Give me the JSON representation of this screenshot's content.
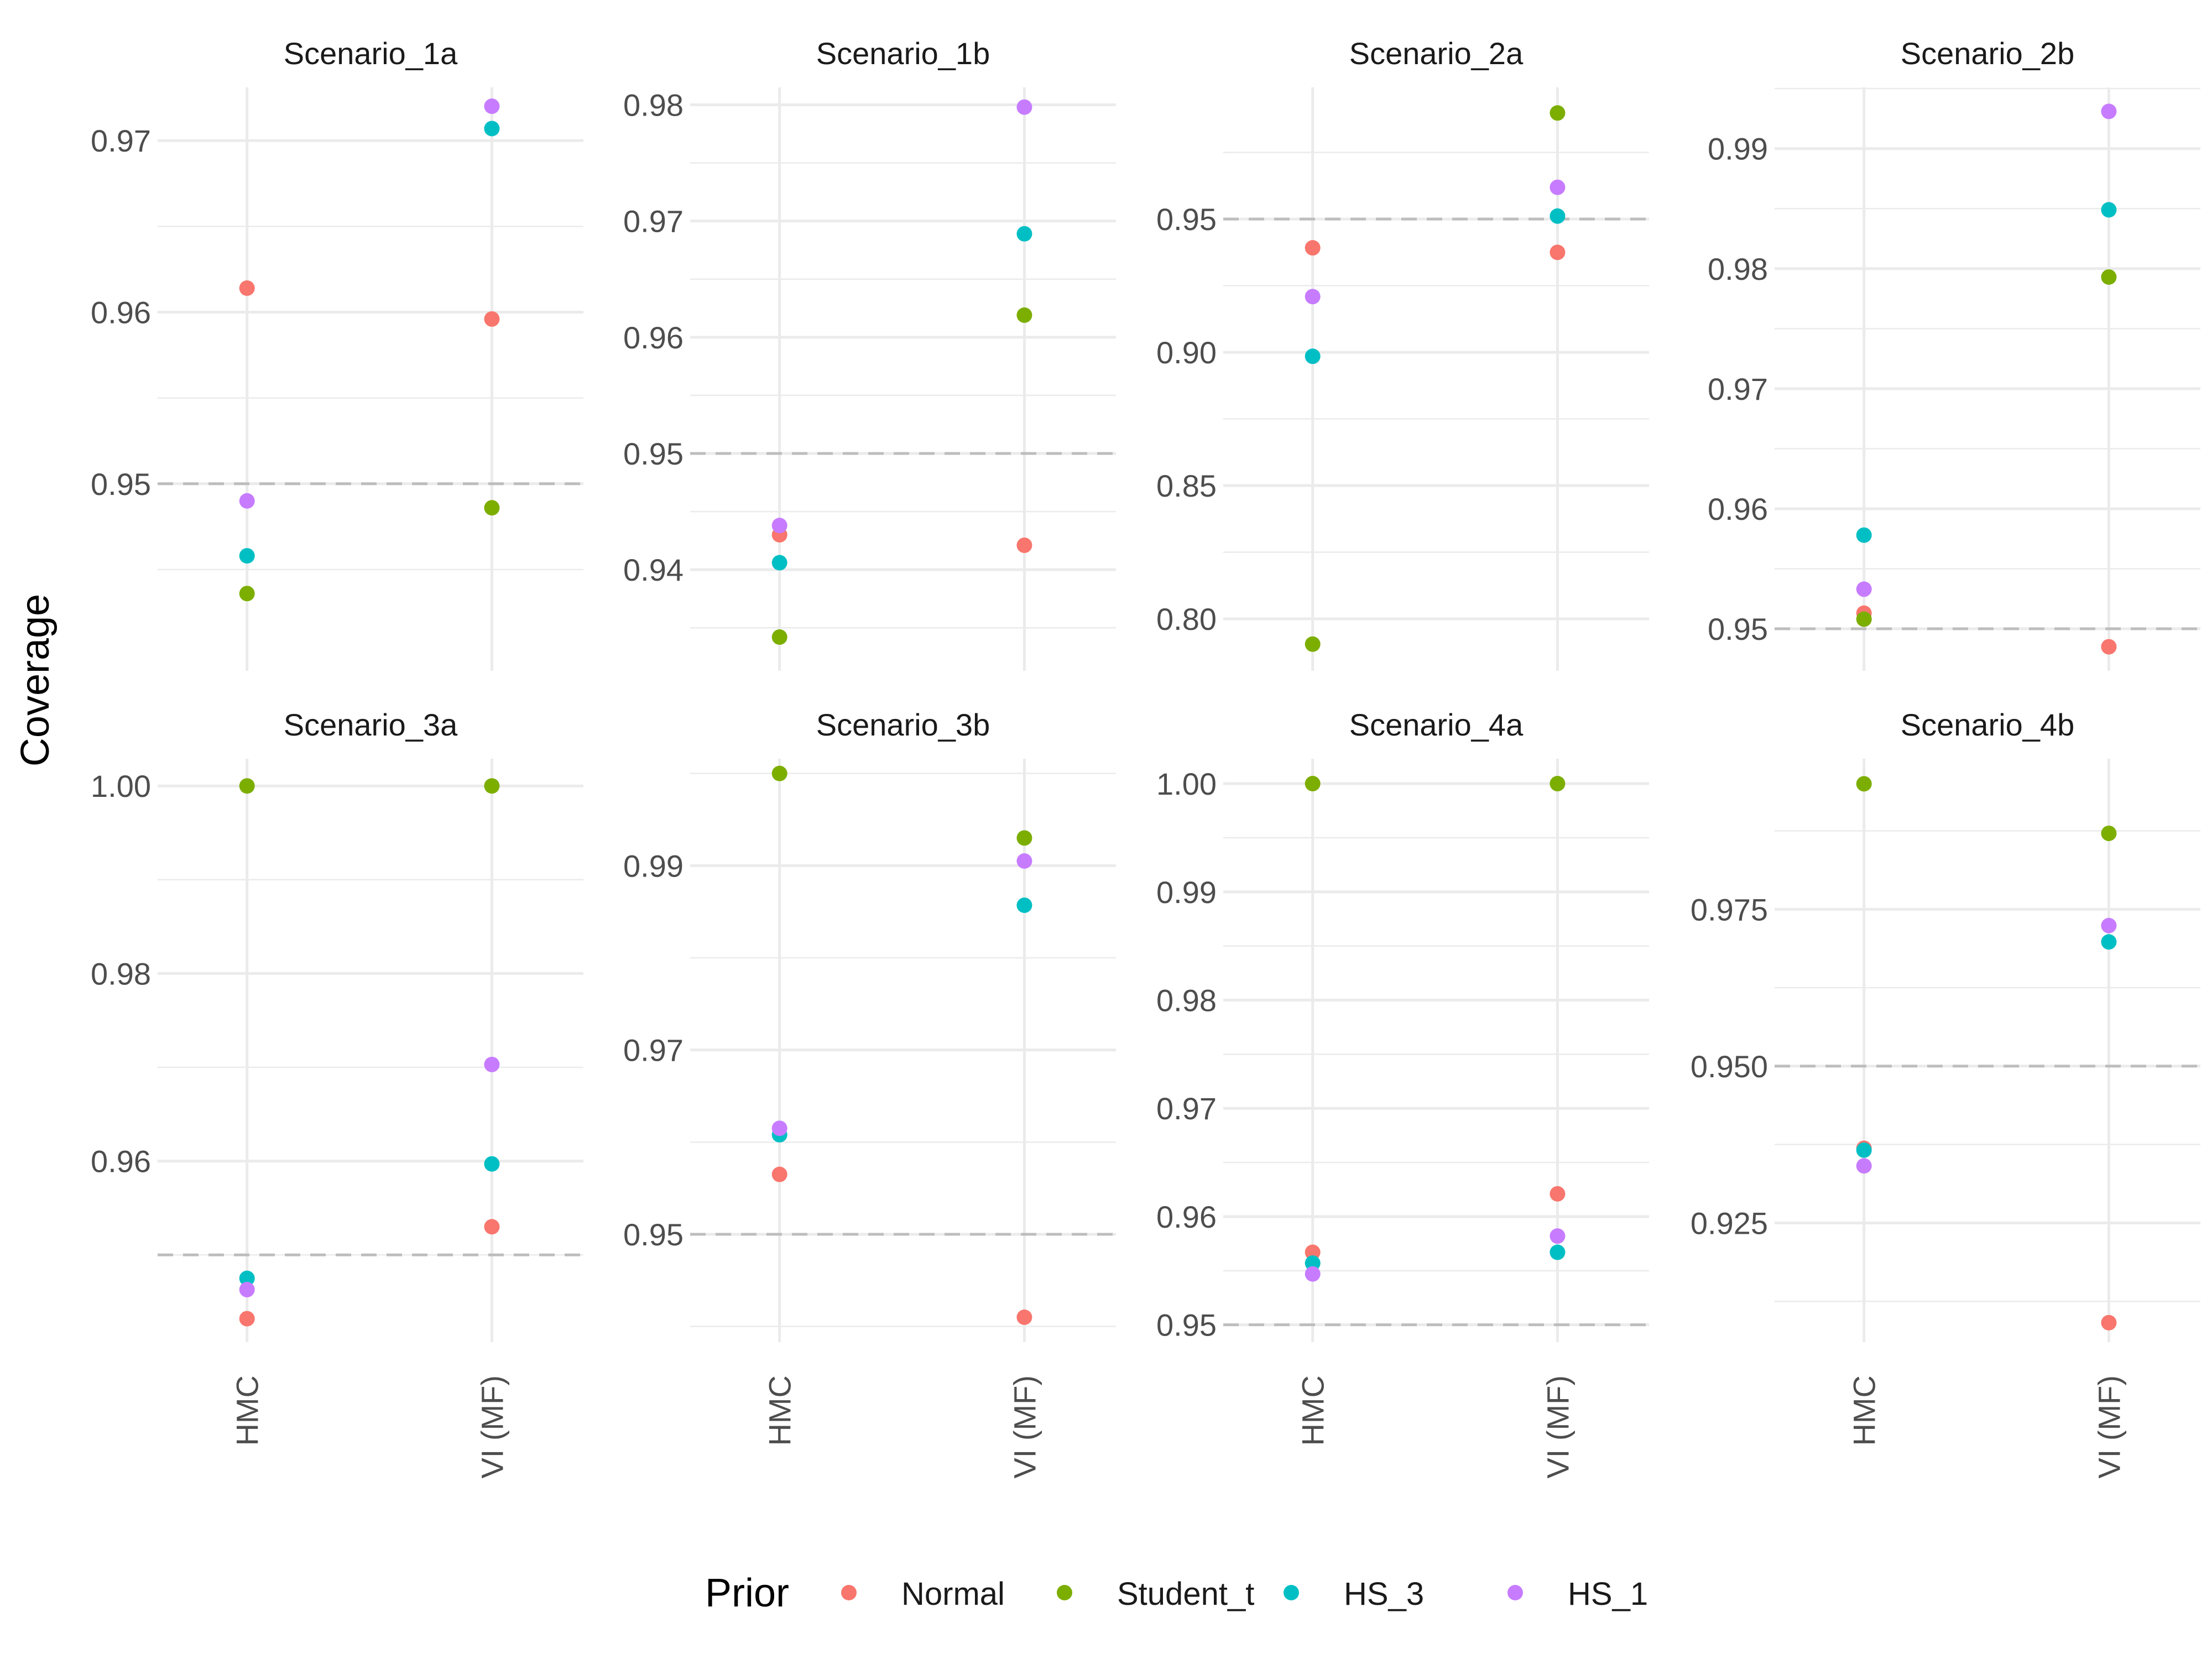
{
  "chart_data": {
    "type": "scatter",
    "facet_layout": "2 rows x 4 columns",
    "ylabel": "Coverage",
    "xlabel": "",
    "reference_line": {
      "y": 0.95,
      "style": "dashed",
      "color": "#bdbdbd"
    },
    "categories": [
      "HMC",
      "VI (MF)"
    ],
    "legend": {
      "title": "Prior",
      "position": "bottom",
      "entries": [
        {
          "name": "Normal",
          "color": "#F8766D"
        },
        {
          "name": "Student_t",
          "color": "#7CAE00"
        },
        {
          "name": "HS_3",
          "color": "#00BFC4"
        },
        {
          "name": "HS_1",
          "color": "#C77CFF"
        }
      ]
    },
    "panels": [
      {
        "title": "Scenario_1a",
        "ylim": [
          0.9391,
          0.9731
        ],
        "yticks": [
          0.95,
          0.96,
          0.97
        ],
        "tick_labels": [
          "0.95",
          "0.96",
          "0.97"
        ],
        "series": [
          {
            "name": "Normal",
            "values": [
              0.9614,
              0.9596
            ]
          },
          {
            "name": "Student_t",
            "values": [
              0.9436,
              0.9486
            ]
          },
          {
            "name": "HS_3",
            "values": [
              0.9458,
              0.9707
            ]
          },
          {
            "name": "HS_1",
            "values": [
              0.949,
              0.972
            ]
          }
        ]
      },
      {
        "title": "Scenario_1b",
        "ylim": [
          0.9313,
          0.9815
        ],
        "yticks": [
          0.94,
          0.95,
          0.96,
          0.97,
          0.98
        ],
        "tick_labels": [
          "0.94",
          "0.95",
          "0.96",
          "0.97",
          "0.98"
        ],
        "series": [
          {
            "name": "Normal",
            "values": [
              0.943,
              0.9421
            ]
          },
          {
            "name": "Student_t",
            "values": [
              0.9342,
              0.9619
            ]
          },
          {
            "name": "HS_3",
            "values": [
              0.9406,
              0.9689
            ]
          },
          {
            "name": "HS_1",
            "values": [
              0.9438,
              0.9798
            ]
          }
        ]
      },
      {
        "title": "Scenario_2a",
        "ylim": [
          0.7805,
          0.9994
        ],
        "yticks": [
          0.8,
          0.85,
          0.9,
          0.95
        ],
        "tick_labels": [
          "0.80",
          "0.85",
          "0.90",
          "0.95"
        ],
        "series": [
          {
            "name": "Normal",
            "values": [
              0.9392,
              0.9375
            ]
          },
          {
            "name": "Student_t",
            "values": [
              0.7905,
              0.9898
            ]
          },
          {
            "name": "HS_3",
            "values": [
              0.8985,
              0.9511
            ]
          },
          {
            "name": "HS_1",
            "values": [
              0.9209,
              0.9619
            ]
          }
        ]
      },
      {
        "title": "Scenario_2b",
        "ylim": [
          0.9465,
          0.9951
        ],
        "yticks": [
          0.95,
          0.96,
          0.97,
          0.98,
          0.99
        ],
        "tick_labels": [
          "0.95",
          "0.96",
          "0.97",
          "0.98",
          "0.99"
        ],
        "series": [
          {
            "name": "Normal",
            "values": [
              0.9513,
              0.9485
            ]
          },
          {
            "name": "Student_t",
            "values": [
              0.9508,
              0.9793
            ]
          },
          {
            "name": "HS_3",
            "values": [
              0.9578,
              0.9849
            ]
          },
          {
            "name": "HS_1",
            "values": [
              0.9533,
              0.9931
            ]
          }
        ]
      },
      {
        "title": "Scenario_3a",
        "ylim": [
          0.9407,
          1.0029
        ],
        "yticks": [
          0.96,
          0.98,
          1.0
        ],
        "tick_labels": [
          "0.96",
          "0.98",
          "1.00"
        ],
        "series": [
          {
            "name": "Normal",
            "values": [
              0.9432,
              0.953
            ]
          },
          {
            "name": "Student_t",
            "values": [
              1.0,
              1.0
            ]
          },
          {
            "name": "HS_3",
            "values": [
              0.9475,
              0.9597
            ]
          },
          {
            "name": "HS_1",
            "values": [
              0.9463,
              0.9703
            ]
          }
        ]
      },
      {
        "title": "Scenario_3b",
        "ylim": [
          0.9383,
          1.0016
        ],
        "yticks": [
          0.95,
          0.97,
          0.99
        ],
        "tick_labels": [
          "0.95",
          "0.97",
          "0.99"
        ],
        "series": [
          {
            "name": "Normal",
            "values": [
              0.9565,
              0.941
            ]
          },
          {
            "name": "Student_t",
            "values": [
              1.0,
              0.993
            ]
          },
          {
            "name": "HS_3",
            "values": [
              0.9608,
              0.9857
            ]
          },
          {
            "name": "HS_1",
            "values": [
              0.9615,
              0.9905
            ]
          }
        ]
      },
      {
        "title": "Scenario_4a",
        "ylim": [
          0.9484,
          1.0023
        ],
        "yticks": [
          0.95,
          0.96,
          0.97,
          0.98,
          0.99,
          1.0
        ],
        "tick_labels": [
          "0.95",
          "0.96",
          "0.97",
          "0.98",
          "0.99",
          "1.00"
        ],
        "series": [
          {
            "name": "Normal",
            "values": [
              0.9567,
              0.9621
            ]
          },
          {
            "name": "Student_t",
            "values": [
              1.0,
              1.0
            ]
          },
          {
            "name": "HS_3",
            "values": [
              0.9557,
              0.9567
            ]
          },
          {
            "name": "HS_1",
            "values": [
              0.9547,
              0.9582
            ]
          }
        ]
      },
      {
        "title": "Scenario_4b",
        "ylim": [
          0.906,
          0.999
        ],
        "yticks": [
          0.925,
          0.95,
          0.975
        ],
        "tick_labels": [
          "0.925",
          "0.950",
          "0.975"
        ],
        "series": [
          {
            "name": "Normal",
            "values": [
              0.9369,
              0.9091
            ]
          },
          {
            "name": "Student_t",
            "values": [
              0.995,
              0.9871
            ]
          },
          {
            "name": "HS_3",
            "values": [
              0.9366,
              0.9698
            ]
          },
          {
            "name": "HS_1",
            "values": [
              0.9341,
              0.9724
            ]
          }
        ]
      }
    ]
  }
}
